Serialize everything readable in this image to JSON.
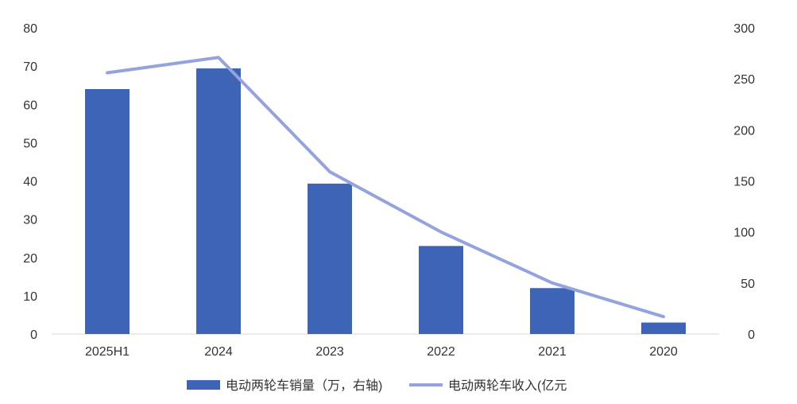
{
  "chart_data": {
    "type": "bar",
    "categories": [
      "2025H1",
      "2024",
      "2023",
      "2022",
      "2021",
      "2020"
    ],
    "series": [
      {
        "name": "电动两轮车销量（万，右轴)",
        "type": "bar",
        "axis": "left",
        "color": "#3E64B5",
        "values": [
          64,
          69.4,
          39.3,
          23,
          12,
          3
        ]
      },
      {
        "name": "电动两轮车收入(亿元",
        "type": "line",
        "axis": "right",
        "color": "#94A3DD",
        "values": [
          256,
          271,
          159,
          100,
          50,
          17
        ]
      }
    ],
    "y_left": {
      "min": 0,
      "max": 80,
      "ticks": [
        0,
        10,
        20,
        30,
        40,
        50,
        60,
        70,
        80
      ]
    },
    "y_right": {
      "min": 0,
      "max": 300,
      "ticks": [
        0,
        50,
        100,
        150,
        200,
        250,
        300
      ]
    },
    "title": "",
    "xlabel": "",
    "ylabel": "",
    "grid": false,
    "legend_position": "bottom"
  }
}
